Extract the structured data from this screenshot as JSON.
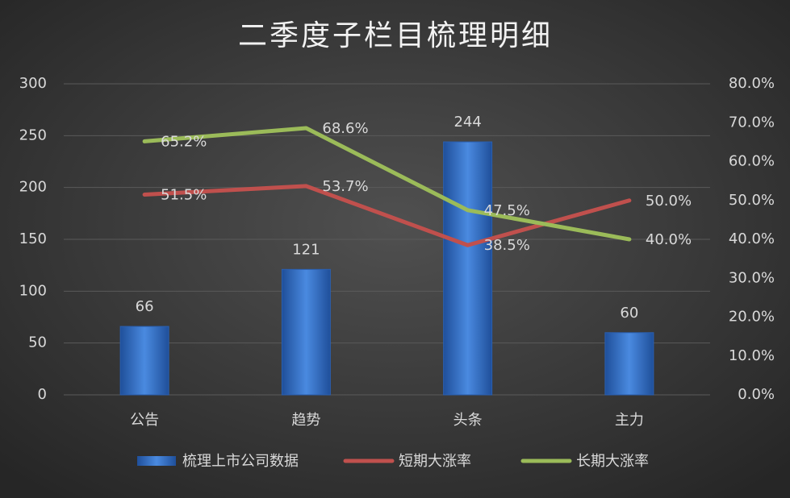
{
  "chart_data": {
    "type": "combo",
    "title": "二季度子栏目梳理明细",
    "categories": [
      "公告",
      "趋势",
      "头条",
      "主力"
    ],
    "series": [
      {
        "name": "梳理上市公司数据",
        "type": "bar",
        "color": "#3a78d0",
        "values": [
          66,
          121,
          244,
          60
        ]
      },
      {
        "name": "短期大涨率",
        "type": "line",
        "axis": "y2",
        "color": "#c0504d",
        "values": [
          51.5,
          53.7,
          38.5,
          50.0
        ],
        "value_labels": [
          "51.5%",
          "53.7%",
          "38.5%",
          "50.0%"
        ]
      },
      {
        "name": "长期大涨率",
        "type": "line",
        "axis": "y2",
        "color": "#9bbb59",
        "values": [
          65.2,
          68.6,
          47.5,
          40.0
        ],
        "value_labels": [
          "65.2%",
          "68.6%",
          "47.5%",
          "40.0%"
        ]
      }
    ],
    "ylim": [
      0,
      300
    ],
    "yticks": [
      0,
      50,
      100,
      150,
      200,
      250,
      300
    ],
    "y2lim": [
      0,
      80
    ],
    "y2ticks": [
      {
        "value": 0,
        "label": "0.0%"
      },
      {
        "value": 10,
        "label": "10.0%"
      },
      {
        "value": 20,
        "label": "20.0%"
      },
      {
        "value": 30,
        "label": "30.0%"
      },
      {
        "value": 40,
        "label": "40.0%"
      },
      {
        "value": 50,
        "label": "50.0%"
      },
      {
        "value": 60,
        "label": "60.0%"
      },
      {
        "value": 70,
        "label": "70.0%"
      },
      {
        "value": 80,
        "label": "80.0%"
      }
    ],
    "grid": true,
    "legend": "bottom"
  }
}
